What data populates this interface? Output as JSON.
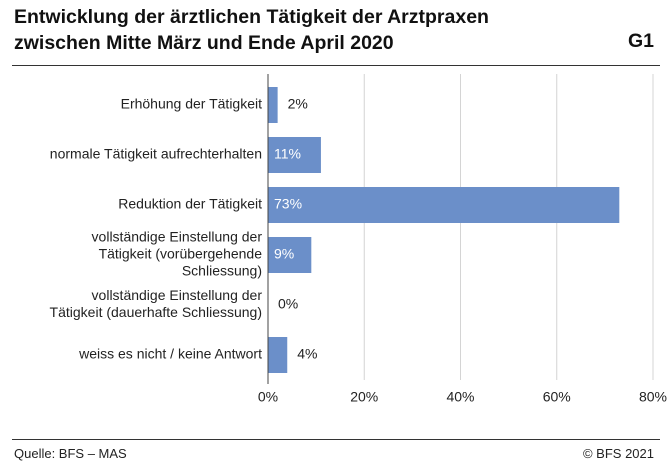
{
  "header": {
    "title_line1": "Entwicklung der ärztlichen Tätigkeit der Arztpraxen",
    "title_line2": "zwischen Mitte März und Ende April 2020",
    "code": "G1"
  },
  "footer": {
    "source": "Quelle: BFS – MAS",
    "copyright": "© BFS 2021"
  },
  "colors": {
    "bar": "#6b8fc9",
    "grid": "#d4d4d4",
    "axis": "#444444",
    "label_inside": "#ffffff",
    "label_outside": "#222222"
  },
  "chart_data": {
    "type": "bar",
    "orientation": "horizontal",
    "categories": [
      [
        "Erhöhung der Tätigkeit"
      ],
      [
        "normale Tätigkeit aufrechterhalten"
      ],
      [
        "Reduktion der Tätigkeit"
      ],
      [
        "vollständige Einstellung der",
        "Tätigkeit (vorübergehende",
        "Schliessung)"
      ],
      [
        "vollständige Einstellung der",
        "Tätigkeit (dauerhafte Schliessung)"
      ],
      [
        "weiss es nicht / keine Antwort"
      ]
    ],
    "values": [
      2,
      11,
      73,
      9,
      0,
      4
    ],
    "value_labels": [
      "2%",
      "11%",
      "73%",
      "9%",
      "0%",
      "4%"
    ],
    "x_ticks": [
      0,
      20,
      40,
      60,
      80
    ],
    "x_tick_labels": [
      "0%",
      "20%",
      "40%",
      "60%",
      "80%"
    ],
    "xlim": [
      0,
      80
    ],
    "grid": true
  }
}
